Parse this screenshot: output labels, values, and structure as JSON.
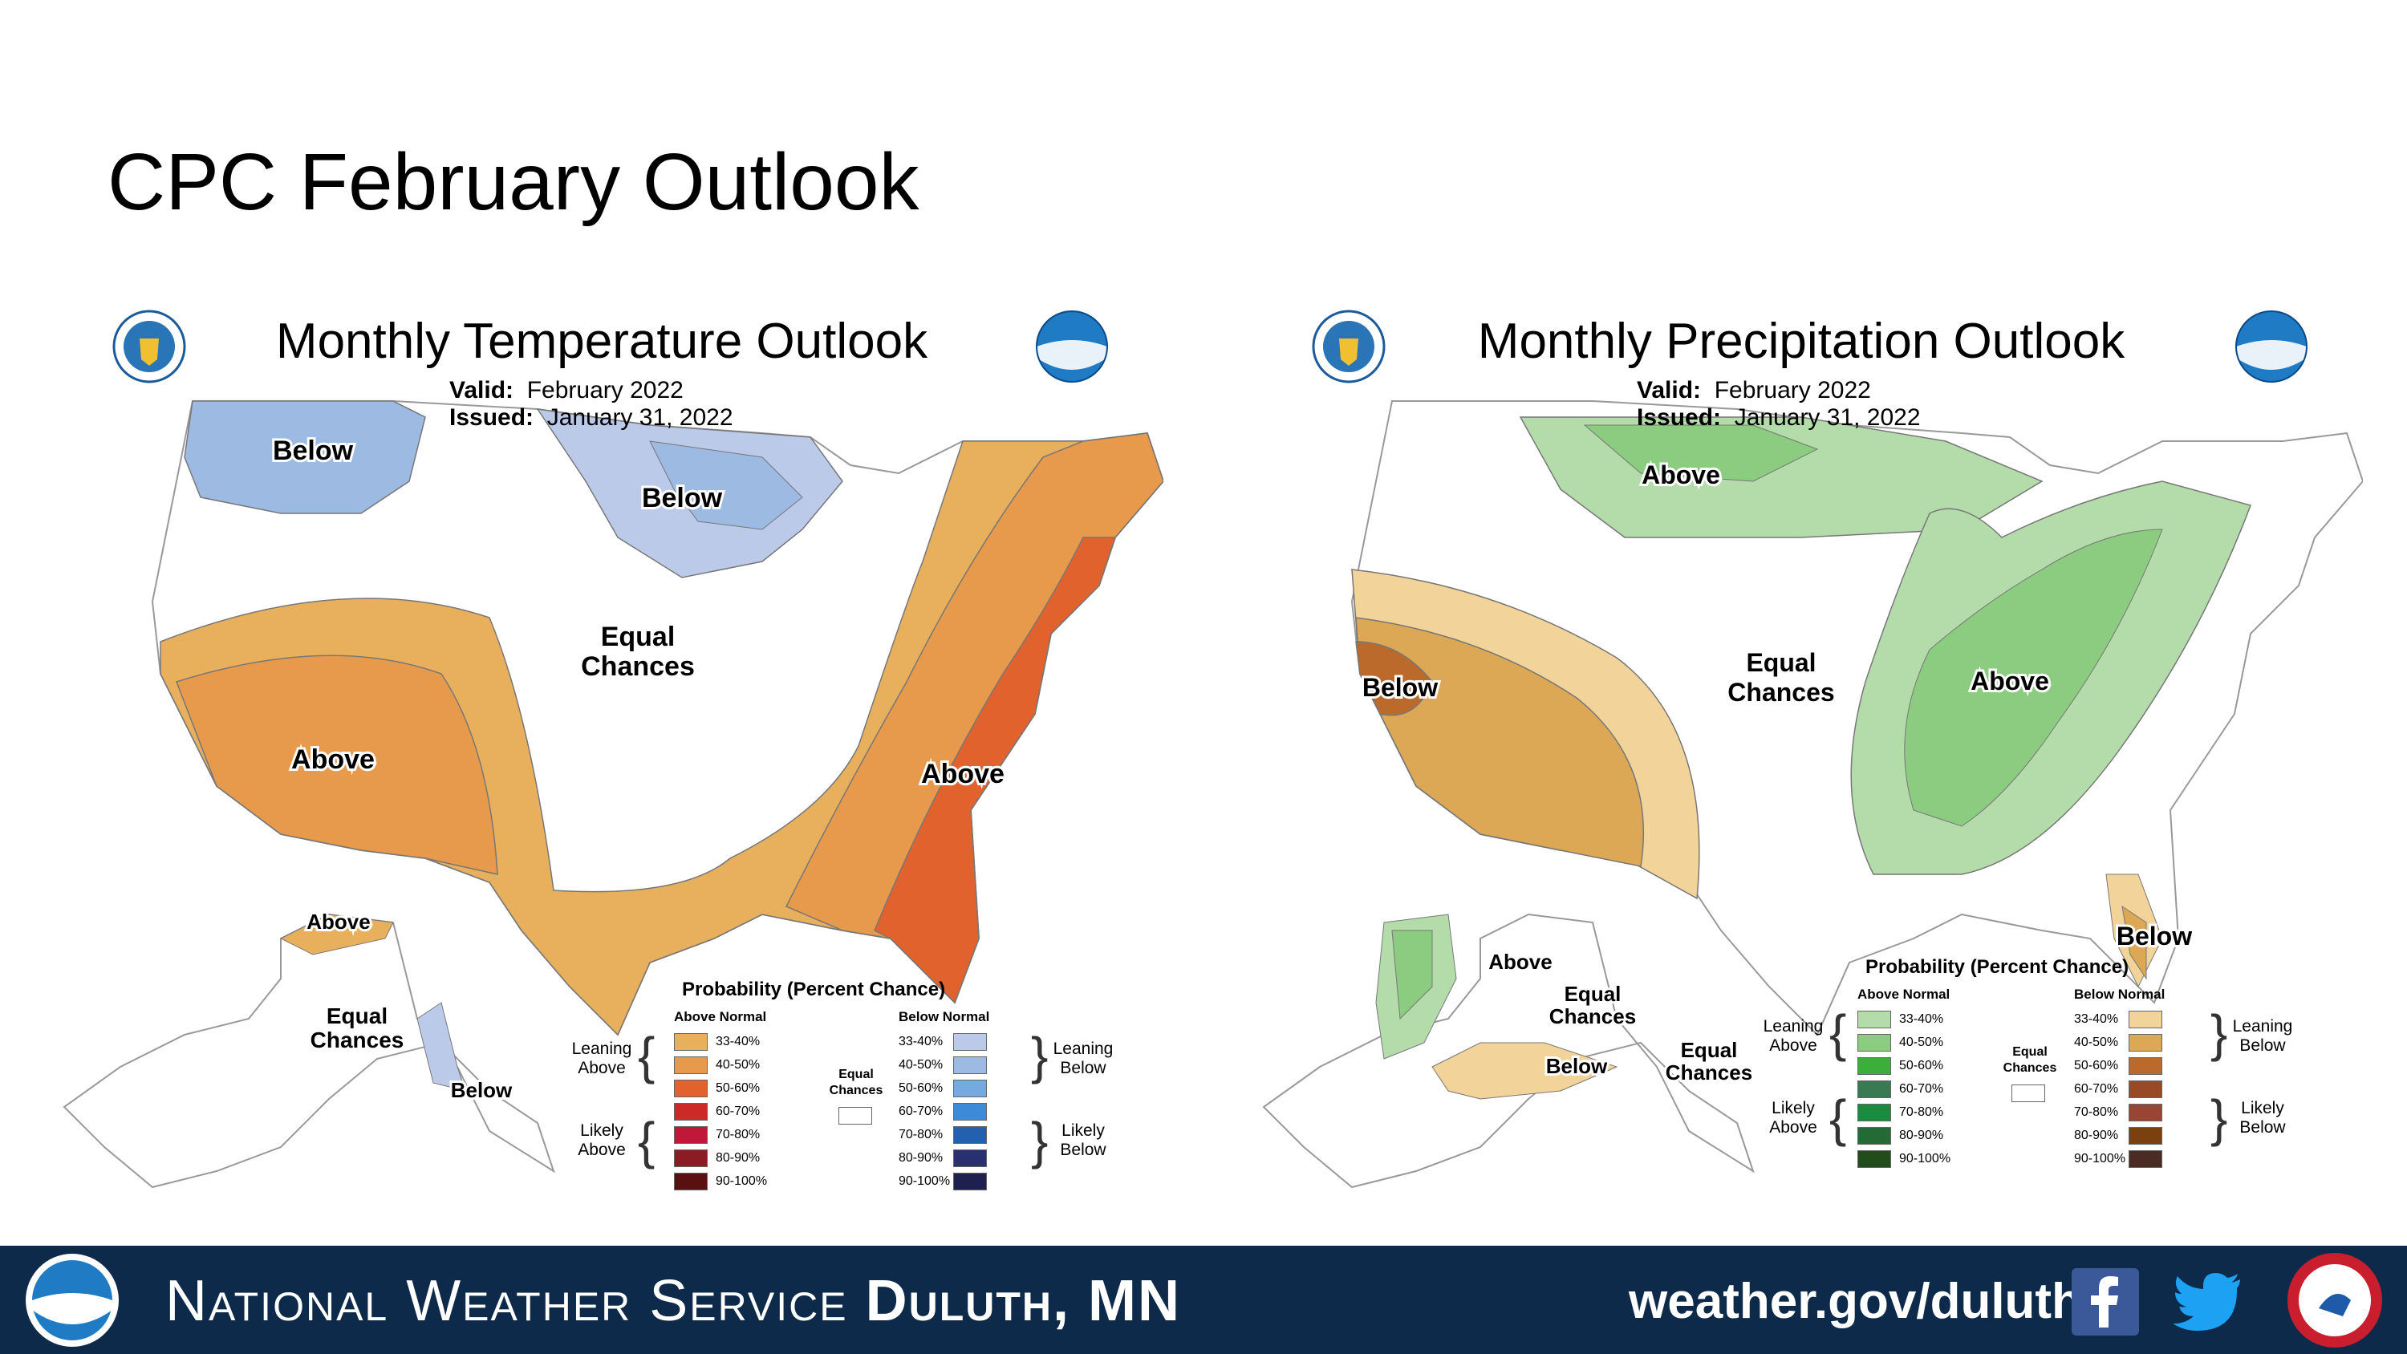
{
  "slide": {
    "title": "CPC February Outlook"
  },
  "temperature": {
    "title": "Monthly Temperature Outlook",
    "valid_label": "Valid:",
    "valid": "February 2022",
    "issued_label": "Issued:",
    "issued": "January 31, 2022",
    "regions": {
      "below_nw": "Below",
      "below_n": "Below",
      "equal_1": "Equal",
      "equal_2": "Chances",
      "above_sw": "Above",
      "above_se": "Above",
      "ak_above": "Above",
      "ak_equal_1": "Equal",
      "ak_equal_2": "Chances",
      "ak_below": "Below"
    },
    "legend": {
      "title": "Probability (Percent Chance)",
      "above_header": "Above Normal",
      "below_header": "Below Normal",
      "leaning_above": [
        "Leaning",
        "Above"
      ],
      "likely_above": [
        "Likely",
        "Above"
      ],
      "leaning_below": [
        "Leaning",
        "Below"
      ],
      "likely_below": [
        "Likely",
        "Below"
      ],
      "equal": [
        "Equal",
        "Chances"
      ],
      "bins": [
        "33-40%",
        "40-50%",
        "50-60%",
        "60-70%",
        "70-80%",
        "80-90%",
        "90-100%"
      ],
      "above_colors": [
        "#e8b05c",
        "#e89a4c",
        "#e2622e",
        "#cc2a26",
        "#c01838",
        "#8c1c24",
        "#5a1010"
      ],
      "below_colors": [
        "#bccaea",
        "#9cbae2",
        "#74aae0",
        "#3c8ad8",
        "#2460b0",
        "#283070",
        "#202050"
      ]
    }
  },
  "precipitation": {
    "title": "Monthly Precipitation Outlook",
    "valid_label": "Valid:",
    "valid": "February 2022",
    "issued_label": "Issued:",
    "issued": "January 31, 2022",
    "regions": {
      "above_n": "Above",
      "equal_1": "Equal",
      "equal_2": "Chances",
      "below_w": "Below",
      "above_ov": "Above",
      "below_fl": "Below",
      "ak_above": "Above",
      "ak_equal_1": "Equal",
      "ak_equal_2": "Chances",
      "ak_below": "Below",
      "se_equal_1": "Equal",
      "se_equal_2": "Chances"
    },
    "legend": {
      "title": "Probability (Percent Chance)",
      "above_header": "Above Normal",
      "below_header": "Below Normal",
      "leaning_above": [
        "Leaning",
        "Above"
      ],
      "likely_above": [
        "Likely",
        "Above"
      ],
      "leaning_below": [
        "Leaning",
        "Below"
      ],
      "likely_below": [
        "Likely",
        "Below"
      ],
      "equal": [
        "Equal",
        "Chances"
      ],
      "bins": [
        "33-40%",
        "40-50%",
        "50-60%",
        "60-70%",
        "70-80%",
        "80-90%",
        "90-100%"
      ],
      "above_colors": [
        "#b4dcaa",
        "#8ccc80",
        "#3cae3c",
        "#3a7a52",
        "#1a8c40",
        "#246a34",
        "#224c1c"
      ],
      "below_colors": [
        "#f2d49a",
        "#dca856",
        "#bc6a2c",
        "#984a28",
        "#9a4434",
        "#7a4010",
        "#4a2c24"
      ]
    }
  },
  "footer": {
    "org": "National Weather Service",
    "office": "Duluth, MN",
    "url": "weather.gov/duluth"
  },
  "colors": {
    "footer_bg": "#0e2a4a"
  }
}
